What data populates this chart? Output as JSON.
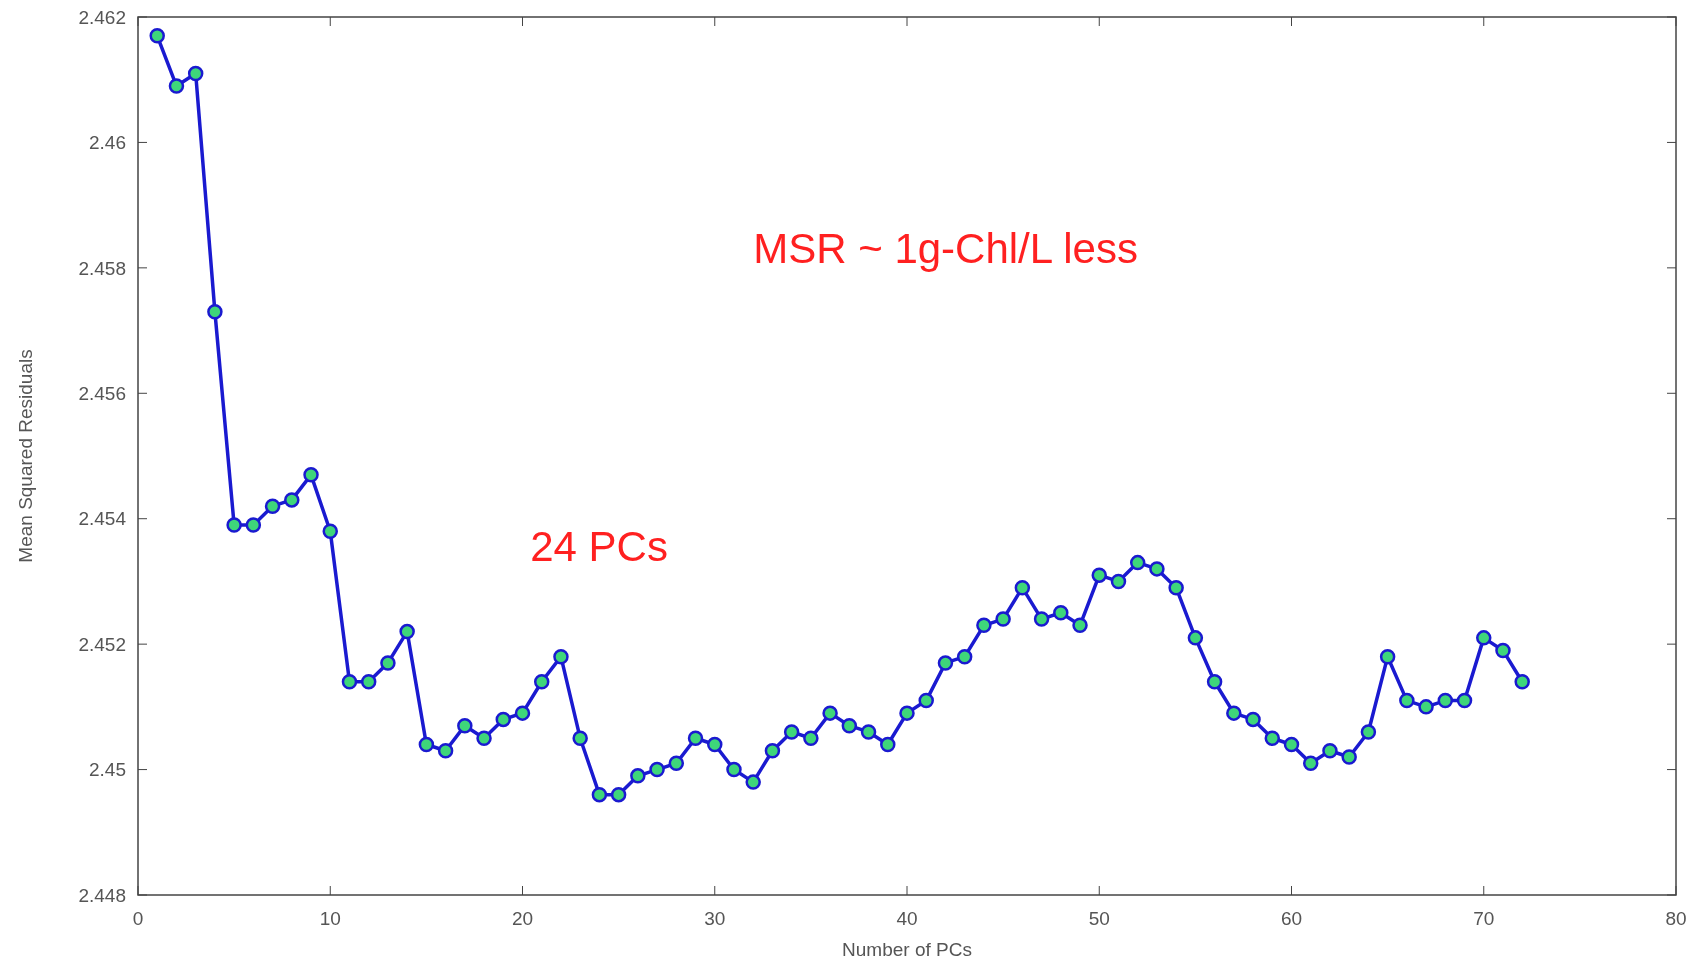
{
  "chart_data": {
    "type": "line",
    "xlabel": "Number of PCs",
    "ylabel": "Mean Squared Residuals",
    "x": [
      1,
      2,
      3,
      4,
      5,
      6,
      7,
      8,
      9,
      10,
      11,
      12,
      13,
      14,
      15,
      16,
      17,
      18,
      19,
      20,
      21,
      22,
      23,
      24,
      25,
      26,
      27,
      28,
      29,
      30,
      31,
      32,
      33,
      34,
      35,
      36,
      37,
      38,
      39,
      40,
      41,
      42,
      43,
      44,
      45,
      46,
      47,
      48,
      49,
      50,
      51,
      52,
      53,
      54,
      55,
      56,
      57,
      58,
      59,
      60,
      61,
      62,
      63,
      64,
      65,
      66,
      67,
      68,
      69,
      70,
      71,
      72
    ],
    "series": [
      {
        "color": "#1a1ad0",
        "values": [
          2.4617,
          2.4609,
          2.4611,
          2.4573,
          2.4539,
          2.4539,
          2.4542,
          2.4543,
          2.4547,
          2.4538,
          2.4514,
          2.4514,
          2.4517,
          2.4522,
          2.4504,
          2.4503,
          2.4507,
          2.4505,
          2.4508,
          2.4509,
          2.4514,
          2.4518,
          2.4505,
          2.4496,
          2.4496,
          2.4499,
          2.45,
          2.4501,
          2.4505,
          2.4504,
          2.45,
          2.4498,
          2.4503,
          2.4506,
          2.4505,
          2.4509,
          2.4507,
          2.4506,
          2.4504,
          2.4509,
          2.4511,
          2.4517,
          2.4518,
          2.4523,
          2.4524,
          2.4529,
          2.4524,
          2.4525,
          2.4523,
          2.4531,
          2.453,
          2.4533,
          2.4532,
          2.4529,
          2.4521,
          2.4514,
          2.4509,
          2.4508,
          2.4505,
          2.4504,
          2.4501,
          2.4503,
          2.4502,
          2.4506,
          2.4518,
          2.4511,
          2.451,
          2.4511,
          2.4511,
          2.4521,
          2.4519,
          2.4514
        ]
      }
    ],
    "xlim": [
      0,
      80
    ],
    "xticks": [
      0,
      10,
      20,
      30,
      40,
      50,
      60,
      70,
      80
    ],
    "ylim": [
      2.448,
      2.462
    ],
    "yticks": [
      2.448,
      2.45,
      2.452,
      2.454,
      2.456,
      2.458,
      2.46,
      2.462
    ],
    "marker": "circle",
    "grid": false,
    "annotations": [
      "MSR ~ 1g-Chl/L less",
      "24 PCs"
    ]
  }
}
